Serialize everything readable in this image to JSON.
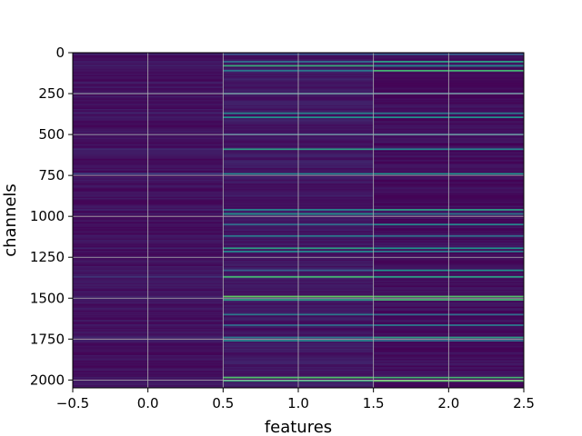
{
  "chart_data": {
    "type": "heatmap",
    "title": "",
    "xlabel": "features",
    "ylabel": "channels",
    "xlim": [
      -0.5,
      2.5
    ],
    "ylim": [
      2048,
      0
    ],
    "y_inverted": true,
    "grid": true,
    "colormap": "viridis",
    "n_rows": 2048,
    "n_columns": 3,
    "column_centers": [
      0,
      1,
      2
    ],
    "x_ticks": [
      -0.5,
      0.0,
      0.5,
      1.0,
      1.5,
      2.0,
      2.5
    ],
    "x_tick_labels": [
      "−0.5",
      "0.0",
      "0.5",
      "1.0",
      "1.5",
      "2.0",
      "2.5"
    ],
    "y_ticks": [
      0,
      250,
      500,
      750,
      1000,
      1250,
      1500,
      1750,
      2000
    ],
    "y_tick_labels": [
      "0",
      "250",
      "500",
      "750",
      "1000",
      "1250",
      "1500",
      "1750",
      "2000"
    ],
    "column_background_levels": [
      0.05,
      0.07,
      0.04
    ],
    "bright_rows": [
      {
        "channel": 10,
        "values": [
          0.1,
          0.25,
          0.3
        ]
      },
      {
        "channel": 55,
        "values": [
          0.08,
          0.35,
          0.55
        ]
      },
      {
        "channel": 80,
        "values": [
          0.1,
          0.6,
          0.45
        ]
      },
      {
        "channel": 110,
        "values": [
          0.06,
          0.4,
          0.65
        ]
      },
      {
        "channel": 250,
        "values": [
          0.12,
          0.35,
          0.3
        ]
      },
      {
        "channel": 370,
        "values": [
          0.1,
          0.45,
          0.4
        ]
      },
      {
        "channel": 395,
        "values": [
          0.08,
          0.5,
          0.5
        ]
      },
      {
        "channel": 500,
        "values": [
          0.1,
          0.3,
          0.35
        ]
      },
      {
        "channel": 590,
        "values": [
          0.12,
          0.55,
          0.45
        ]
      },
      {
        "channel": 740,
        "values": [
          0.2,
          0.45,
          0.5
        ]
      },
      {
        "channel": 960,
        "values": [
          0.1,
          0.45,
          0.55
        ]
      },
      {
        "channel": 985,
        "values": [
          0.08,
          0.5,
          0.4
        ]
      },
      {
        "channel": 1050,
        "values": [
          0.06,
          0.35,
          0.45
        ]
      },
      {
        "channel": 1120,
        "values": [
          0.08,
          0.4,
          0.35
        ]
      },
      {
        "channel": 1195,
        "values": [
          0.1,
          0.55,
          0.5
        ]
      },
      {
        "channel": 1215,
        "values": [
          0.06,
          0.45,
          0.4
        ]
      },
      {
        "channel": 1330,
        "values": [
          0.08,
          0.3,
          0.5
        ]
      },
      {
        "channel": 1370,
        "values": [
          0.15,
          0.65,
          0.55
        ]
      },
      {
        "channel": 1490,
        "values": [
          0.1,
          0.75,
          0.7
        ]
      },
      {
        "channel": 1510,
        "values": [
          0.08,
          0.55,
          0.65
        ]
      },
      {
        "channel": 1600,
        "values": [
          0.06,
          0.4,
          0.35
        ]
      },
      {
        "channel": 1665,
        "values": [
          0.08,
          0.35,
          0.4
        ]
      },
      {
        "channel": 1740,
        "values": [
          0.12,
          0.4,
          0.55
        ]
      },
      {
        "channel": 1760,
        "values": [
          0.1,
          0.45,
          0.35
        ]
      },
      {
        "channel": 1985,
        "values": [
          0.08,
          0.7,
          0.65
        ]
      },
      {
        "channel": 2005,
        "values": [
          0.08,
          0.6,
          0.75
        ]
      }
    ]
  }
}
